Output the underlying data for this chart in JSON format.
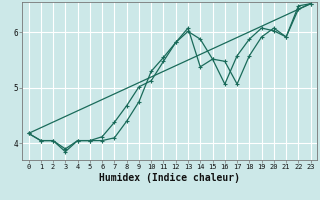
{
  "bg_color": "#cce8e8",
  "grid_color": "#ffffff",
  "line_color": "#1a6b5a",
  "xlabel": "Humidex (Indice chaleur)",
  "xlim": [
    -0.5,
    23.5
  ],
  "ylim": [
    3.7,
    6.55
  ],
  "yticks": [
    4,
    5,
    6
  ],
  "xticks": [
    0,
    1,
    2,
    3,
    4,
    5,
    6,
    7,
    8,
    9,
    10,
    11,
    12,
    13,
    14,
    15,
    16,
    17,
    18,
    19,
    20,
    21,
    22,
    23
  ],
  "line1_x": [
    0,
    1,
    2,
    3,
    4,
    5,
    6,
    7,
    8,
    9,
    10,
    11,
    12,
    13,
    14,
    15,
    16,
    17,
    18,
    19,
    20,
    21,
    22,
    23
  ],
  "line1_y": [
    4.18,
    4.05,
    4.05,
    3.85,
    4.05,
    4.05,
    4.05,
    4.1,
    4.4,
    4.75,
    5.3,
    5.55,
    5.82,
    6.08,
    5.38,
    5.52,
    5.07,
    5.58,
    5.88,
    6.08,
    6.03,
    5.92,
    6.48,
    6.52
  ],
  "line2_x": [
    0,
    1,
    2,
    3,
    4,
    5,
    6,
    7,
    8,
    9,
    10,
    11,
    12,
    13,
    14,
    15,
    16,
    17,
    18,
    19,
    20,
    21,
    22,
    23
  ],
  "line2_y": [
    4.18,
    4.05,
    4.05,
    3.9,
    4.05,
    4.05,
    4.12,
    4.38,
    4.68,
    5.02,
    5.13,
    5.48,
    5.82,
    6.02,
    5.88,
    5.52,
    5.48,
    5.07,
    5.58,
    5.92,
    6.08,
    5.92,
    6.42,
    6.52
  ],
  "line3_x": [
    0,
    23
  ],
  "line3_y": [
    4.18,
    6.52
  ],
  "markersize": 3.5,
  "linewidth": 0.9,
  "tick_fontsize": 5.0,
  "xlabel_fontsize": 7.0
}
